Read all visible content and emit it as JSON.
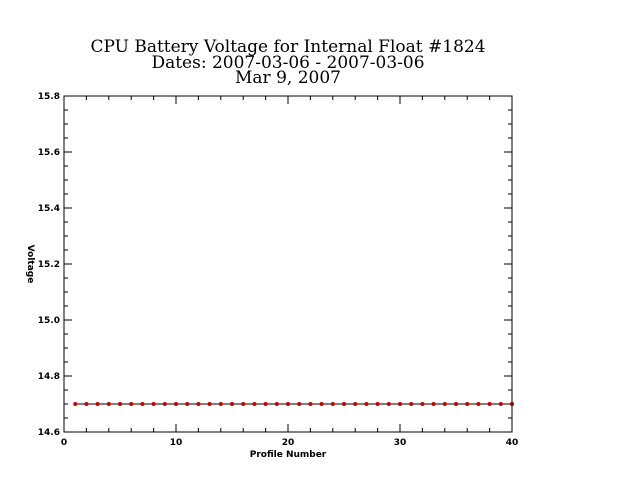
{
  "chart_data": {
    "type": "line",
    "title_lines": [
      "CPU Battery Voltage for Internal Float #1824",
      "Dates:  2007-03-06 -  2007-03-06",
      "Mar  9, 2007"
    ],
    "xlabel": "Profile Number",
    "ylabel": "Voltage",
    "xlim": [
      0,
      40
    ],
    "ylim": [
      14.6,
      15.8
    ],
    "x_ticks": [
      "0",
      "10",
      "20",
      "30",
      "40"
    ],
    "y_ticks": [
      "14.6",
      "14.8",
      "15.0",
      "15.2",
      "15.4",
      "15.6",
      "15.8"
    ],
    "series": [
      {
        "color": "#000000",
        "marker_color": "#cc0000",
        "x": [
          1,
          2,
          3,
          4,
          5,
          6,
          7,
          8,
          9,
          10,
          11,
          12,
          13,
          14,
          15,
          16,
          17,
          18,
          19,
          20,
          21,
          22,
          23,
          24,
          25,
          26,
          27,
          28,
          29,
          30,
          31,
          32,
          33,
          34,
          35,
          36,
          37,
          38,
          39,
          40
        ],
        "y": [
          14.7,
          14.7,
          14.7,
          14.7,
          14.7,
          14.7,
          14.7,
          14.7,
          14.7,
          14.7,
          14.7,
          14.7,
          14.7,
          14.7,
          14.7,
          14.7,
          14.7,
          14.7,
          14.7,
          14.7,
          14.7,
          14.7,
          14.7,
          14.7,
          14.7,
          14.7,
          14.7,
          14.7,
          14.7,
          14.7,
          14.7,
          14.7,
          14.7,
          14.7,
          14.7,
          14.7,
          14.7,
          14.7,
          14.7,
          14.7
        ]
      }
    ]
  }
}
